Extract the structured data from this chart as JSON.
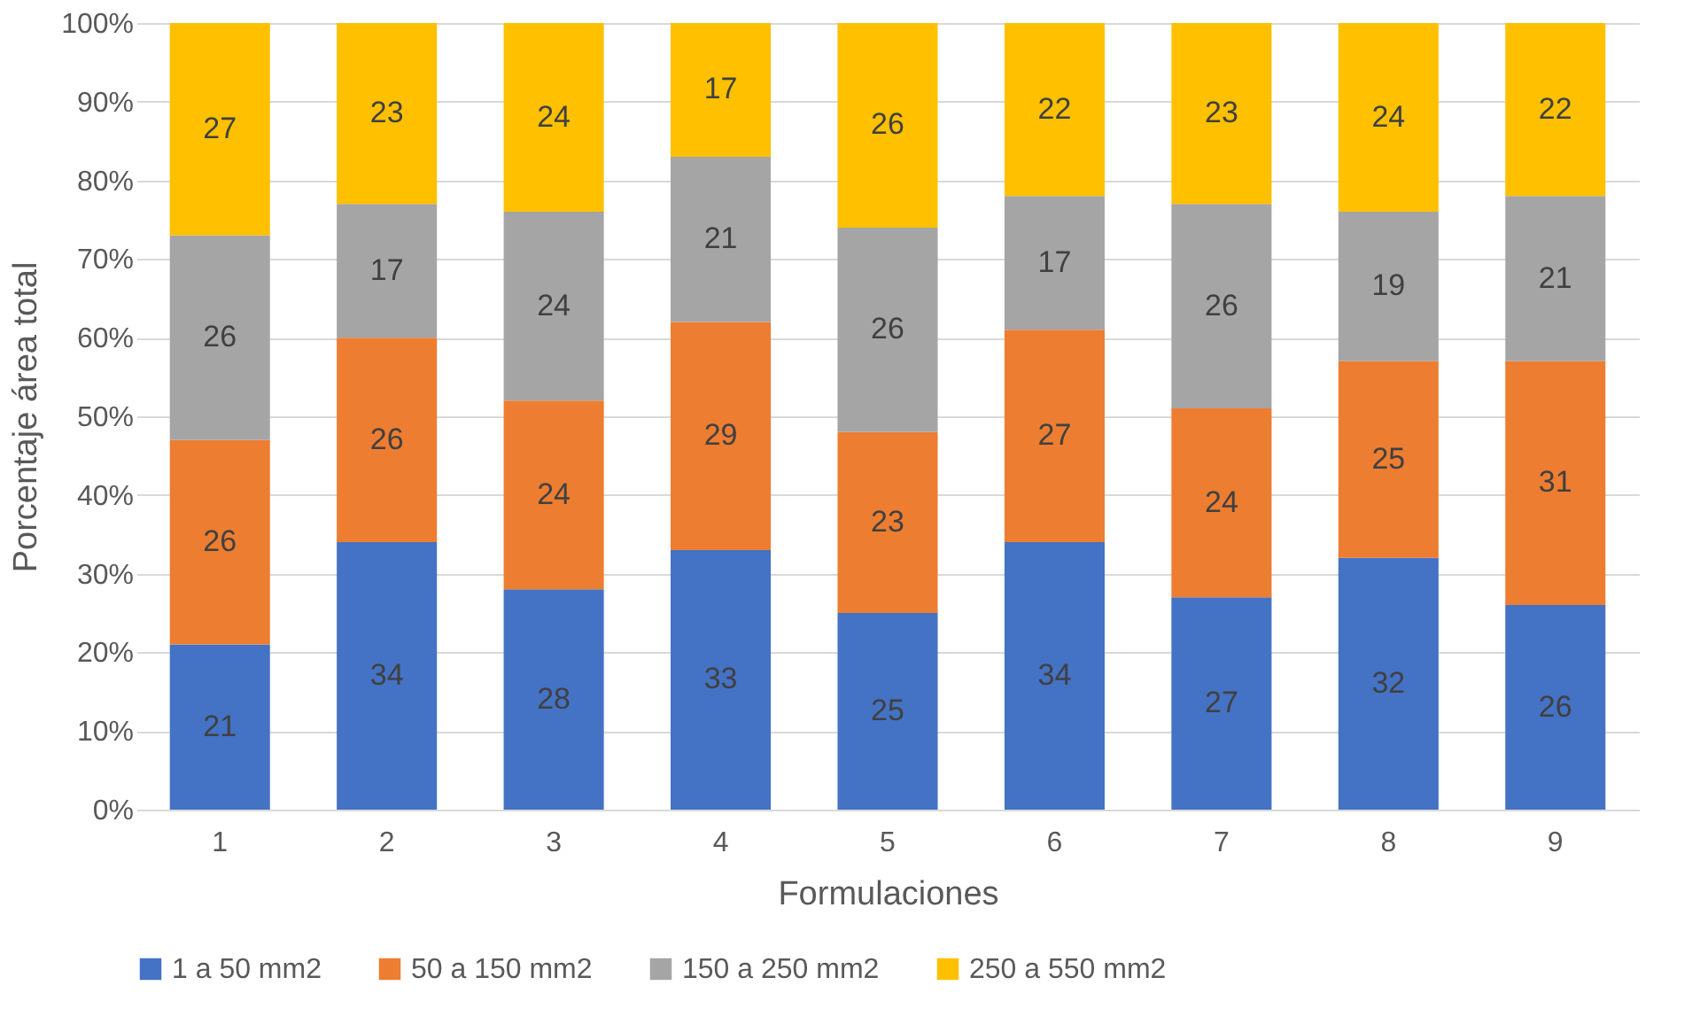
{
  "chart_data": {
    "type": "bar",
    "stacked": true,
    "xlabel": "Formulaciones",
    "ylabel": "Porcentaje área total",
    "categories": [
      "1",
      "2",
      "3",
      "4",
      "5",
      "6",
      "7",
      "8",
      "9"
    ],
    "series": [
      {
        "name": "1 a 50 mm2",
        "color": "#4472c4",
        "values": [
          21,
          34,
          28,
          33,
          25,
          34,
          27,
          32,
          26
        ]
      },
      {
        "name": "50 a 150 mm2",
        "color": "#ed7d31",
        "values": [
          26,
          26,
          24,
          29,
          23,
          27,
          24,
          25,
          31
        ]
      },
      {
        "name": "150 a 250 mm2",
        "color": "#a5a5a5",
        "values": [
          26,
          17,
          24,
          21,
          26,
          17,
          26,
          19,
          21
        ]
      },
      {
        "name": "250 a 550 mm2",
        "color": "#ffc000",
        "values": [
          27,
          23,
          24,
          17,
          26,
          22,
          23,
          24,
          22
        ]
      }
    ],
    "ylim": [
      0,
      100
    ],
    "yticks": [
      {
        "value": 0,
        "label": "0%"
      },
      {
        "value": 10,
        "label": "10%"
      },
      {
        "value": 20,
        "label": "20%"
      },
      {
        "value": 30,
        "label": "30%"
      },
      {
        "value": 40,
        "label": "40%"
      },
      {
        "value": 50,
        "label": "50%"
      },
      {
        "value": 60,
        "label": "60%"
      },
      {
        "value": 70,
        "label": "70%"
      },
      {
        "value": 80,
        "label": "80%"
      },
      {
        "value": 90,
        "label": "90%"
      },
      {
        "value": 100,
        "label": "100%"
      }
    ],
    "grid": "y",
    "legend": "bottom",
    "data_labels": true
  }
}
